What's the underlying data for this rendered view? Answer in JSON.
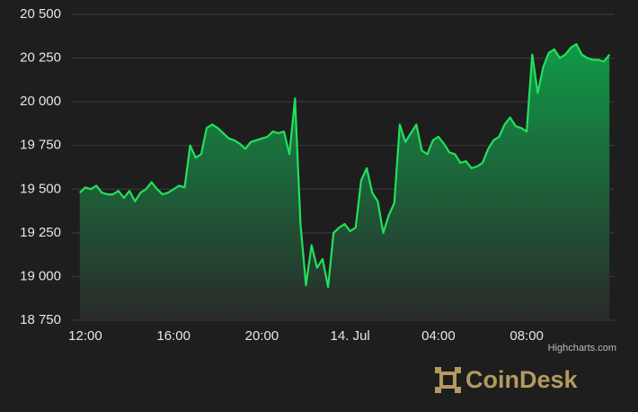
{
  "chart_data": {
    "type": "area",
    "categories": [
      null,
      "12:00",
      null,
      null,
      null,
      null,
      null,
      null,
      null,
      null,
      null,
      null,
      null,
      null,
      null,
      null,
      null,
      "16:00",
      null,
      null,
      null,
      null,
      null,
      null,
      null,
      null,
      null,
      null,
      null,
      null,
      null,
      null,
      null,
      "20:00",
      null,
      null,
      null,
      null,
      null,
      null,
      null,
      null,
      null,
      null,
      null,
      null,
      null,
      null,
      null,
      "14. Jul",
      null,
      null,
      null,
      null,
      null,
      null,
      null,
      null,
      null,
      null,
      null,
      null,
      null,
      null,
      null,
      "04:00",
      null,
      null,
      null,
      null,
      null,
      null,
      null,
      null,
      null,
      null,
      null,
      null,
      null,
      null,
      null,
      "08:00",
      null,
      null,
      null,
      null,
      null,
      null,
      null,
      null,
      null,
      null,
      null,
      null,
      null,
      null,
      null
    ],
    "values": [
      19480,
      19510,
      19500,
      19520,
      19480,
      19470,
      19470,
      19490,
      19450,
      19490,
      19430,
      19480,
      19500,
      19540,
      19500,
      19470,
      19480,
      19500,
      19520,
      19510,
      19750,
      19680,
      19700,
      19850,
      19870,
      19850,
      19820,
      19790,
      19780,
      19760,
      19730,
      19770,
      19780,
      19790,
      19800,
      19830,
      19820,
      19830,
      19700,
      20020,
      19300,
      18950,
      19180,
      19050,
      19100,
      18940,
      19250,
      19280,
      19300,
      19260,
      19280,
      19550,
      19620,
      19480,
      19430,
      19250,
      19350,
      19420,
      19870,
      19770,
      19820,
      19870,
      19720,
      19700,
      19780,
      19800,
      19760,
      19710,
      19700,
      19650,
      19660,
      19620,
      19630,
      19650,
      19730,
      19780,
      19800,
      19870,
      19910,
      19860,
      19850,
      19830,
      20270,
      20050,
      20200,
      20280,
      20300,
      20250,
      20270,
      20310,
      20330,
      20270,
      20250,
      20240,
      20240,
      20230,
      20270
    ],
    "color": "#22e05c",
    "ylim": [
      18750,
      20500
    ],
    "yticks": [
      {
        "value": 18750,
        "label": "18 750"
      },
      {
        "value": 19000,
        "label": "19 000"
      },
      {
        "value": 19250,
        "label": "19 250"
      },
      {
        "value": 19500,
        "label": "19 500"
      },
      {
        "value": 19750,
        "label": "19 750"
      },
      {
        "value": 20000,
        "label": "20 000"
      },
      {
        "value": 20250,
        "label": "20 250"
      },
      {
        "value": 20500,
        "label": "20 500"
      }
    ],
    "grid": true
  },
  "credits": "Highcharts.com",
  "brand": "CoinDesk"
}
